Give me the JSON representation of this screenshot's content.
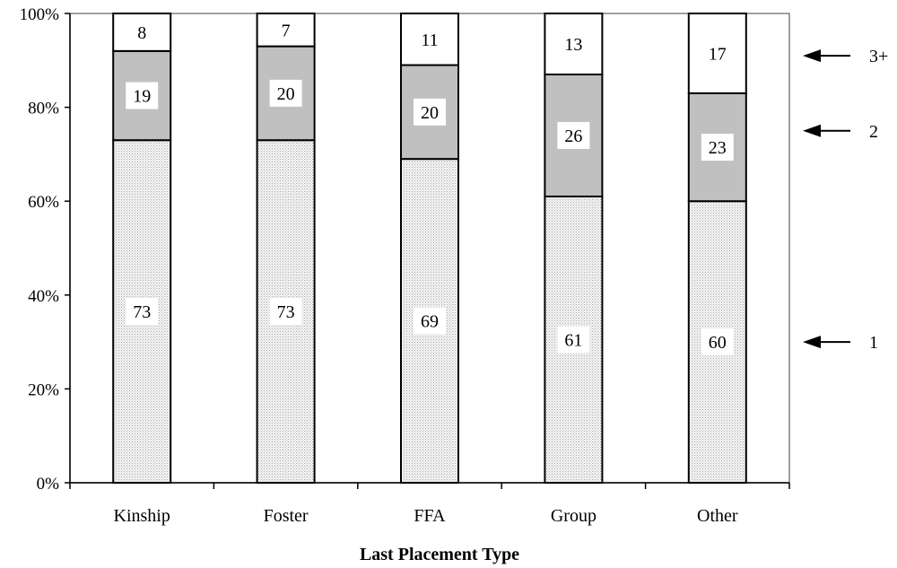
{
  "chart_data": {
    "type": "bar",
    "stacked": true,
    "categories": [
      "Kinship",
      "Foster",
      "FFA",
      "Group",
      "Other"
    ],
    "series": [
      {
        "name": "1",
        "values": [
          73,
          73,
          69,
          61,
          60
        ],
        "color": "#ececec",
        "pattern": "dotted"
      },
      {
        "name": "2",
        "values": [
          19,
          20,
          20,
          26,
          23
        ],
        "color": "#c0c0c0"
      },
      {
        "name": "3+",
        "values": [
          8,
          7,
          11,
          13,
          17
        ],
        "color": "#ffffff"
      }
    ],
    "y_ticks": [
      "0%",
      "20%",
      "40%",
      "60%",
      "80%",
      "100%"
    ],
    "ylim": [
      0,
      100
    ],
    "xlabel": "Last Placement Type",
    "ylabel": "",
    "grid": false,
    "legend": {
      "placement": "right",
      "style": "arrows",
      "entries": [
        {
          "label": "3+",
          "points_to_value": 91
        },
        {
          "label": "2",
          "points_to_value": 75
        },
        {
          "label": "1",
          "points_to_value": 30
        }
      ]
    }
  }
}
